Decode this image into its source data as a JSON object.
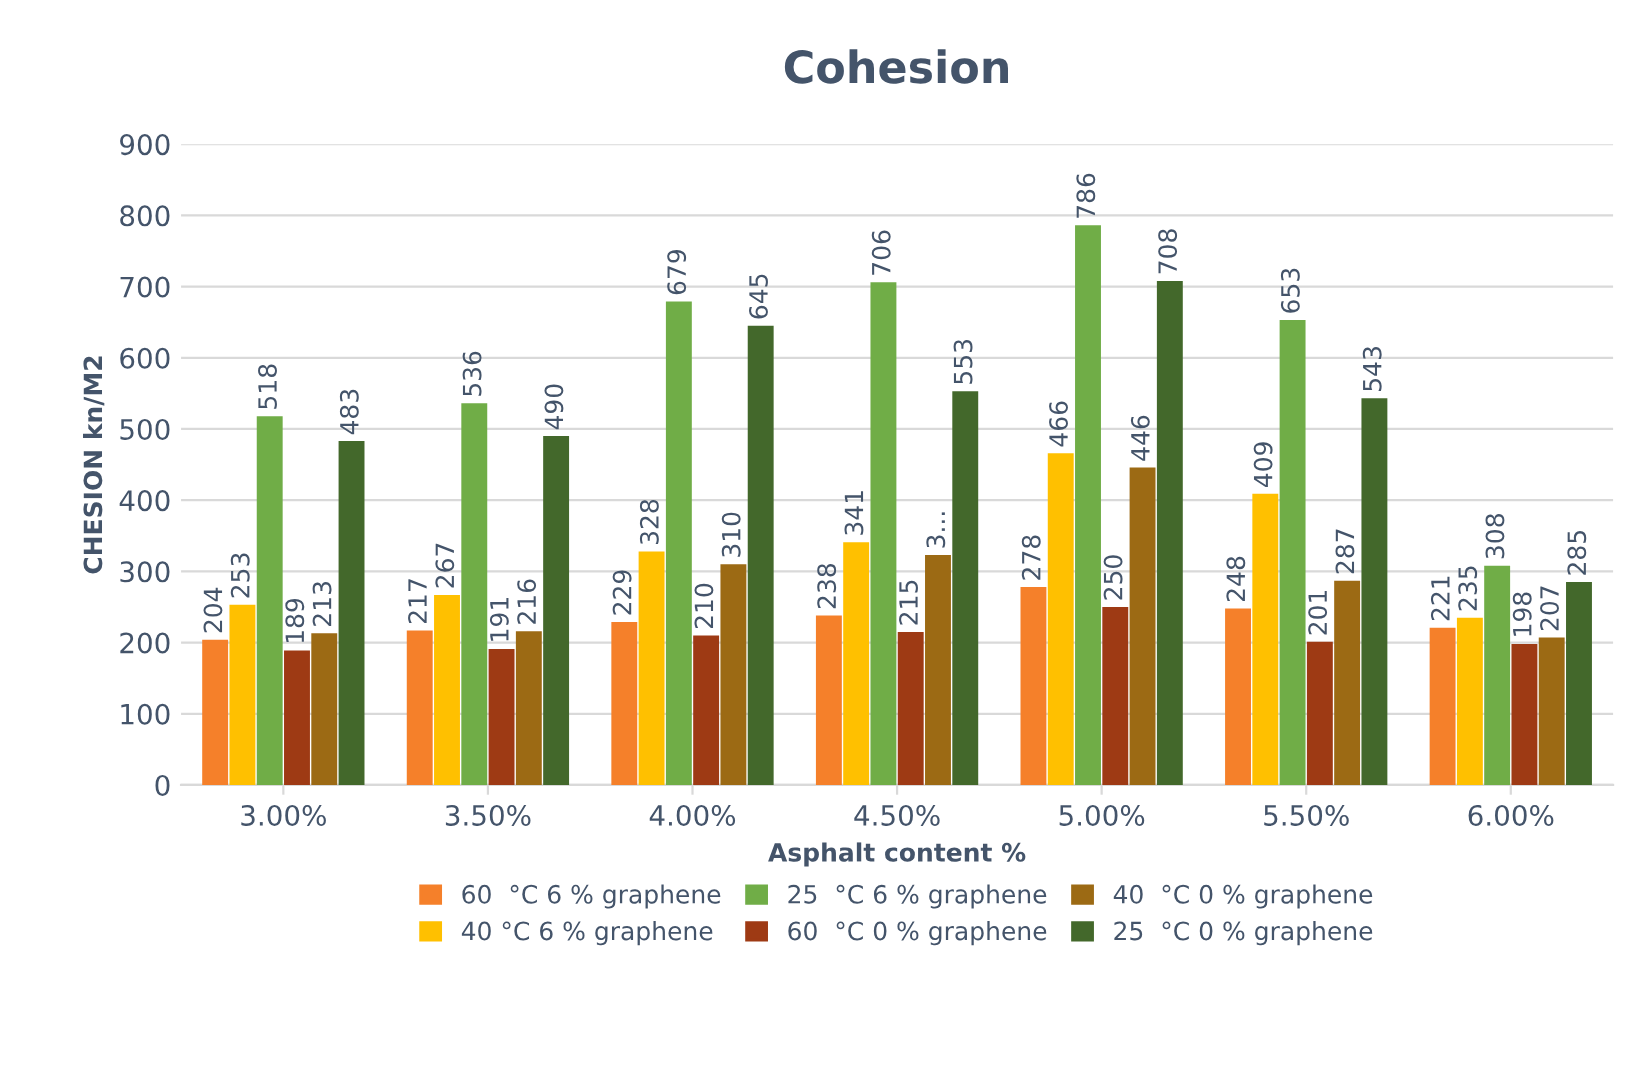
{
  "chart_data": {
    "type": "bar",
    "title": "Cohesion",
    "xlabel": "Asphalt content %",
    "ylabel": "CHESION kn/M2",
    "categories": [
      "3.00%",
      "3.50%",
      "4.00%",
      "4.50%",
      "5.00%",
      "5.50%",
      "6.00%"
    ],
    "series": [
      {
        "name": "60  °C 6 % graphene",
        "color": "#f5802a",
        "values": [
          204,
          217,
          229,
          238,
          278,
          248,
          221
        ],
        "value_labels": [
          "204",
          "217",
          "229",
          "238",
          "278",
          "248",
          "221"
        ]
      },
      {
        "name": "40 °C 6 % graphene",
        "color": "#ffc000",
        "values": [
          253,
          267,
          328,
          341,
          466,
          409,
          235
        ],
        "value_labels": [
          "253",
          "267",
          "328",
          "341",
          "466",
          "409",
          "235"
        ]
      },
      {
        "name": "25  °C 6 % graphene",
        "color": "#70ad47",
        "values": [
          518,
          536,
          679,
          706,
          786,
          653,
          308
        ],
        "value_labels": [
          "518",
          "536",
          "679",
          "706",
          "786",
          "653",
          "308"
        ]
      },
      {
        "name": "60  °C 0 % graphene",
        "color": "#9e3a14",
        "values": [
          189,
          191,
          210,
          215,
          250,
          201,
          198
        ],
        "value_labels": [
          "189",
          "191",
          "210",
          "215",
          "250",
          "201",
          "198"
        ]
      },
      {
        "name": "40  °C 0 % graphene",
        "color": "#9c6a14",
        "values": [
          213,
          216,
          310,
          323,
          446,
          287,
          207
        ],
        "value_labels": [
          "213",
          "216",
          "310",
          "3...",
          "446",
          "287",
          "207"
        ]
      },
      {
        "name": "25  °C 0 % graphene",
        "color": "#43682b",
        "values": [
          483,
          490,
          645,
          553,
          708,
          543,
          285
        ],
        "value_labels": [
          "483",
          "490",
          "645",
          "553",
          "708",
          "543",
          "285"
        ]
      }
    ],
    "ylim": [
      0,
      900
    ],
    "yticks": [
      0,
      100,
      200,
      300,
      400,
      500,
      600,
      700,
      800,
      900
    ],
    "grid": "y",
    "legend": "bottom"
  }
}
